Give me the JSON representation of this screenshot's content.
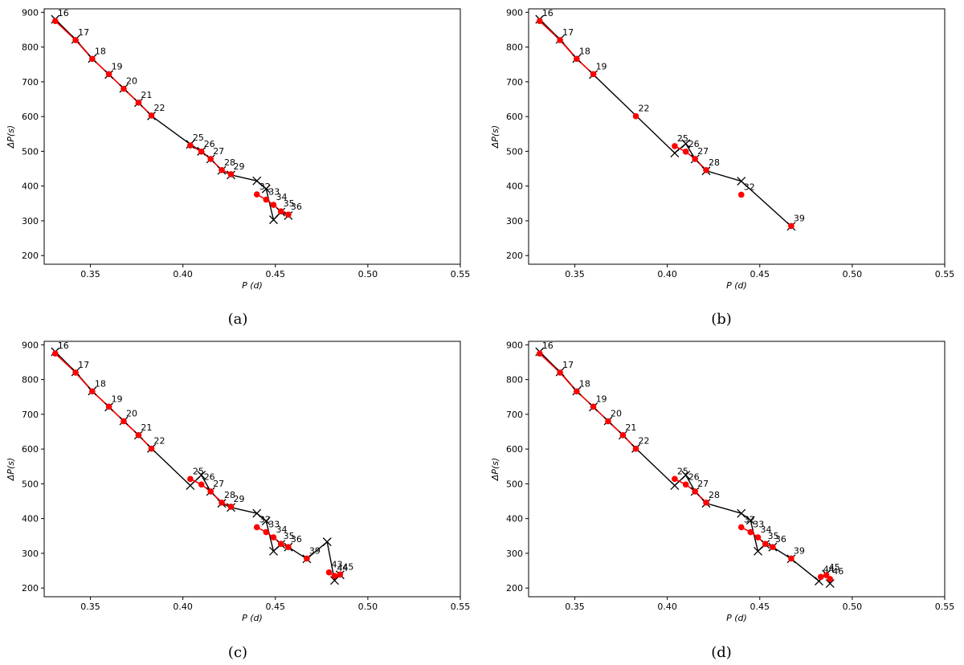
{
  "chart_data": [
    {
      "caption": "(a)",
      "type": "scatter",
      "xlabel": "P (d)",
      "ylabel": "ΔP(s)",
      "xlim": [
        0.325,
        0.55
      ],
      "ylim": [
        175,
        910
      ],
      "xticks": [
        "0.35",
        "0.40",
        "0.45",
        "0.50",
        "0.55"
      ],
      "yticks": [
        "200",
        "300",
        "400",
        "500",
        "600",
        "700",
        "800",
        "900"
      ],
      "xtick_values": [
        0.35,
        0.4,
        0.45,
        0.5,
        0.55
      ],
      "ytick_values": [
        200,
        300,
        400,
        500,
        600,
        700,
        800,
        900
      ],
      "observed": {
        "labels": [
          "16",
          "17",
          "18",
          "19",
          "20",
          "21",
          "22",
          "25",
          "26",
          "27",
          "28",
          "29",
          "32",
          "33",
          "34",
          "35",
          "36"
        ],
        "x": [
          0.331,
          0.342,
          0.351,
          0.36,
          0.368,
          0.376,
          0.383,
          0.404,
          0.41,
          0.415,
          0.421,
          0.426,
          0.44,
          0.445,
          0.449,
          0.453,
          0.457
        ],
        "y": [
          875,
          820,
          766,
          722,
          680,
          640,
          603,
          517,
          499,
          478,
          446,
          434,
          376,
          361,
          346,
          327,
          318
        ]
      },
      "model": {
        "x": [
          0.331,
          0.342,
          0.351,
          0.36,
          0.368,
          0.376,
          0.383,
          0.404,
          0.41,
          0.415,
          0.421,
          0.426,
          0.44,
          0.445,
          0.449,
          0.453,
          0.457
        ],
        "y": [
          880,
          822,
          767,
          721,
          681,
          640,
          602,
          520,
          500,
          478,
          445,
          432,
          415,
          392,
          303,
          325,
          315
        ]
      }
    },
    {
      "caption": "(b)",
      "type": "scatter",
      "xlabel": "P (d)",
      "ylabel": "ΔP(s)",
      "xlim": [
        0.325,
        0.55
      ],
      "ylim": [
        175,
        910
      ],
      "xticks": [
        "0.35",
        "0.40",
        "0.45",
        "0.50",
        "0.55"
      ],
      "yticks": [
        "200",
        "300",
        "400",
        "500",
        "600",
        "700",
        "800",
        "900"
      ],
      "xtick_values": [
        0.35,
        0.4,
        0.45,
        0.5,
        0.55
      ],
      "ytick_values": [
        200,
        300,
        400,
        500,
        600,
        700,
        800,
        900
      ],
      "observed": {
        "labels": [
          "16",
          "17",
          "18",
          "19",
          "22",
          "25",
          "26",
          "27",
          "28",
          "32",
          "39"
        ],
        "x": [
          0.331,
          0.342,
          0.351,
          0.36,
          0.383,
          0.404,
          0.41,
          0.415,
          0.421,
          0.44,
          0.467
        ],
        "y": [
          875,
          820,
          766,
          722,
          601,
          515,
          499,
          478,
          446,
          375,
          285
        ]
      },
      "model": {
        "x": [
          0.331,
          0.342,
          0.351,
          0.36,
          0.404,
          0.41,
          0.415,
          0.421,
          0.44,
          0.467
        ],
        "y": [
          880,
          822,
          767,
          721,
          495,
          522,
          478,
          444,
          414,
          284
        ]
      }
    },
    {
      "caption": "(c)",
      "type": "scatter",
      "xlabel": "P (d)",
      "ylabel": "ΔP(s)",
      "xlim": [
        0.325,
        0.55
      ],
      "ylim": [
        175,
        910
      ],
      "xticks": [
        "0.35",
        "0.40",
        "0.45",
        "0.50",
        "0.55"
      ],
      "yticks": [
        "200",
        "300",
        "400",
        "500",
        "600",
        "700",
        "800",
        "900"
      ],
      "xtick_values": [
        0.35,
        0.4,
        0.45,
        0.5,
        0.55
      ],
      "ytick_values": [
        200,
        300,
        400,
        500,
        600,
        700,
        800,
        900
      ],
      "observed": {
        "labels": [
          "16",
          "17",
          "18",
          "19",
          "20",
          "21",
          "22",
          "25",
          "26",
          "27",
          "28",
          "29",
          "32",
          "33",
          "34",
          "35",
          "36",
          "39",
          "43",
          "44",
          "45"
        ],
        "x": [
          0.331,
          0.342,
          0.351,
          0.36,
          0.368,
          0.376,
          0.383,
          0.404,
          0.41,
          0.415,
          0.421,
          0.426,
          0.44,
          0.445,
          0.449,
          0.453,
          0.457,
          0.467,
          0.479,
          0.482,
          0.485
        ],
        "y": [
          875,
          820,
          766,
          722,
          680,
          640,
          601,
          514,
          498,
          478,
          446,
          434,
          375,
          361,
          346,
          327,
          318,
          285,
          245,
          235,
          239
        ]
      },
      "model": {
        "x": [
          0.331,
          0.342,
          0.351,
          0.36,
          0.368,
          0.376,
          0.383,
          0.404,
          0.41,
          0.415,
          0.421,
          0.426,
          0.44,
          0.445,
          0.449,
          0.453,
          0.457,
          0.467,
          0.478,
          0.482,
          0.485
        ],
        "y": [
          880,
          822,
          767,
          721,
          681,
          640,
          602,
          495,
          525,
          478,
          444,
          432,
          415,
          393,
          306,
          326,
          318,
          284,
          333,
          222,
          238
        ]
      }
    },
    {
      "caption": "(d)",
      "type": "scatter",
      "xlabel": "P (d)",
      "ylabel": "ΔP(s)",
      "xlim": [
        0.325,
        0.55
      ],
      "ylim": [
        175,
        910
      ],
      "xticks": [
        "0.35",
        "0.40",
        "0.45",
        "0.50",
        "0.55"
      ],
      "yticks": [
        "200",
        "300",
        "400",
        "500",
        "600",
        "700",
        "800",
        "900"
      ],
      "xtick_values": [
        0.35,
        0.4,
        0.45,
        0.5,
        0.55
      ],
      "ytick_values": [
        200,
        300,
        400,
        500,
        600,
        700,
        800,
        900
      ],
      "observed": {
        "labels": [
          "16",
          "17",
          "18",
          "19",
          "20",
          "21",
          "22",
          "25",
          "26",
          "27",
          "28",
          "32",
          "33",
          "34",
          "35",
          "36",
          "39",
          "44",
          "45",
          "46"
        ],
        "x": [
          0.331,
          0.342,
          0.351,
          0.36,
          0.368,
          0.376,
          0.383,
          0.404,
          0.41,
          0.415,
          0.421,
          0.44,
          0.445,
          0.449,
          0.453,
          0.457,
          0.467,
          0.483,
          0.486,
          0.488
        ],
        "y": [
          875,
          820,
          766,
          722,
          680,
          640,
          601,
          514,
          498,
          478,
          446,
          375,
          361,
          346,
          327,
          318,
          285,
          232,
          237,
          226
        ]
      },
      "model": {
        "x": [
          0.331,
          0.342,
          0.351,
          0.36,
          0.368,
          0.376,
          0.383,
          0.404,
          0.41,
          0.415,
          0.421,
          0.44,
          0.445,
          0.449,
          0.453,
          0.457,
          0.467,
          0.482,
          0.486,
          0.488
        ],
        "y": [
          880,
          822,
          767,
          721,
          681,
          640,
          602,
          495,
          525,
          478,
          444,
          415,
          395,
          306,
          326,
          318,
          284,
          220,
          240,
          213
        ]
      }
    }
  ],
  "colors": {
    "observed": "#ff0000",
    "model": "#000000",
    "axis": "#000000"
  }
}
